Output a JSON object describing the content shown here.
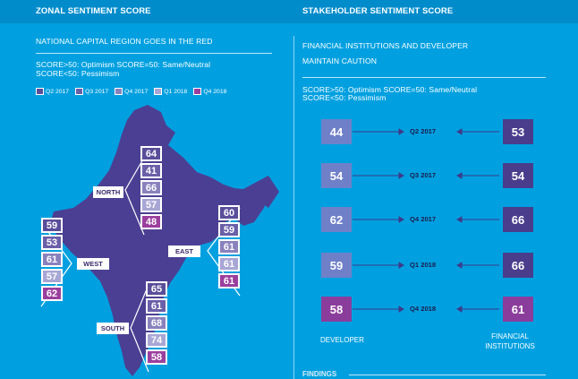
{
  "colors": {
    "bg": "#00a0e0",
    "header": "#008ccb",
    "map": "#4b3f93",
    "q2_2017": "#5a4e9a",
    "q3_2017": "#6a5fa8",
    "q4_2017": "#8a82bd",
    "q1_2018": "#a8a6d4",
    "q4_2018": "#9b3f9e",
    "stake_dev": [
      "#6f80c9",
      "#6f80c9",
      "#6f80c9",
      "#6f80c9",
      "#8b3d9b"
    ],
    "stake_fin": [
      "#4a3d8c",
      "#4a3d8c",
      "#4a3d8c",
      "#4a3d8c",
      "#8b3d9b"
    ]
  },
  "left": {
    "title": "ZONAL SENTIMENT SCORE",
    "subtitle": "NATIONAL CAPITAL REGION GOES IN THE RED",
    "score_note_1": "SCORE>50: Optimism SCORE=50: Same/Neutral",
    "score_note_2": "SCORE<50: Pessimism",
    "legend": [
      "Q2 2017",
      "Q3 2017",
      "Q4 2017",
      "Q1 2018",
      "Q4 2018"
    ],
    "zones": {
      "north": {
        "label": "NORTH",
        "scores": [
          "64",
          "41",
          "66",
          "57",
          "48"
        ]
      },
      "west": {
        "label": "WEST",
        "scores": [
          "59",
          "53",
          "61",
          "57",
          "62"
        ]
      },
      "east": {
        "label": "EAST",
        "scores": [
          "60",
          "59",
          "61",
          "61",
          "61"
        ]
      },
      "south": {
        "label": "SOUTH",
        "scores": [
          "65",
          "61",
          "68",
          "74",
          "58"
        ]
      }
    }
  },
  "right": {
    "title": "STAKEHOLDER SENTIMENT SCORE",
    "subtitle_1": "FINANCIAL INSTITUTIONS AND DEVELOPER",
    "subtitle_2": "MAINTAIN CAUTION",
    "score_note_1": "SCORE>50: Optimism SCORE=50: Same/Neutral",
    "score_note_2": "SCORE<50: Pessimism",
    "rows": [
      {
        "quarter": "Q2 2017",
        "developer": "44",
        "financial": "53"
      },
      {
        "quarter": "Q3 2017",
        "developer": "54",
        "financial": "54"
      },
      {
        "quarter": "Q4 2017",
        "developer": "62",
        "financial": "66"
      },
      {
        "quarter": "Q1 2018",
        "developer": "59",
        "financial": "66"
      },
      {
        "quarter": "Q4 2018",
        "developer": "58",
        "financial": "61"
      }
    ],
    "developer_label": "DEVELOPER",
    "financial_label_1": "FINANCIAL",
    "financial_label_2": "INSTITUTIONS",
    "findings": "FINDINGS"
  }
}
